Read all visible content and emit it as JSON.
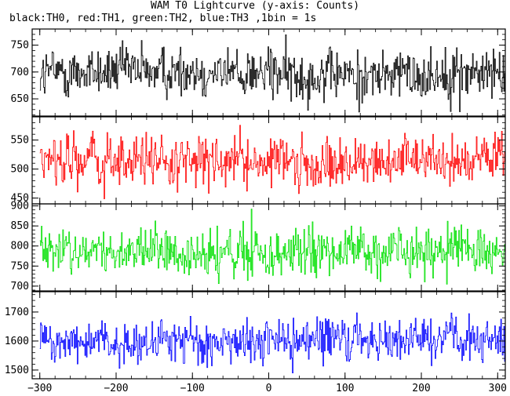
{
  "chart_data": {
    "type": "line",
    "title": "WAM T0 Lightcurve (y-axis: Counts)",
    "subtitle": "black:TH0, red:TH1, green:TH2, blue:TH3 ,1bin = 1s",
    "xlim": [
      -310,
      310
    ],
    "x_ticks": [
      -300,
      -200,
      -100,
      0,
      100,
      200,
      300
    ],
    "x_tick_labels": [
      "−300",
      "−200",
      "−100",
      "0",
      "100",
      "200",
      "300"
    ],
    "bin_seconds": 1,
    "panels": [
      {
        "color": "#000000",
        "ylim": [
          618,
          780
        ],
        "y_ticks": [
          650,
          700,
          750
        ],
        "series": {
          "x_start": -300,
          "x_end": 310,
          "step": 1,
          "mean": 698,
          "amplitude": 24,
          "peak_range": [
            615,
            780
          ]
        }
      },
      {
        "color": "#ff0000",
        "ylim": [
          440,
          590
        ],
        "y_ticks": [
          450,
          500,
          550
        ],
        "series": {
          "x_start": -300,
          "x_end": 310,
          "step": 1,
          "mean": 512,
          "amplitude": 22,
          "peak_range": [
            440,
            590
          ]
        }
      },
      {
        "color": "#00e000",
        "ylim": [
          688,
          905
        ],
        "y_ticks": [
          700,
          750,
          800,
          850,
          900
        ],
        "series": {
          "x_start": -300,
          "x_end": 310,
          "step": 1,
          "mean": 785,
          "amplitude": 30,
          "peak_range": [
            690,
            905
          ]
        }
      },
      {
        "color": "#0000ff",
        "ylim": [
          1470,
          1770
        ],
        "y_ticks": [
          1500,
          1600,
          1700
        ],
        "series": {
          "x_start": -300,
          "x_end": 310,
          "step": 1,
          "mean": 1600,
          "amplitude": 38,
          "peak_range": [
            1470,
            1760
          ]
        }
      }
    ]
  }
}
